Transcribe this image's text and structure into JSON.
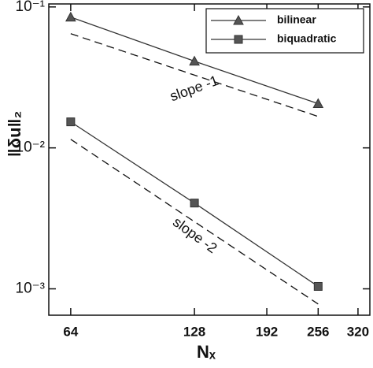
{
  "chart_data": {
    "type": "line",
    "xlabel": "Nₓ",
    "ylabel": "‖δu‖₂",
    "xscale": "log",
    "yscale": "log",
    "x": [
      64,
      128,
      256
    ],
    "series": [
      {
        "name": "bilinear",
        "color": "#333333",
        "marker": "triangle",
        "values": [
          0.0846,
          0.0412,
          0.0206
        ]
      },
      {
        "name": "biquadratic",
        "color": "#333333",
        "marker": "square",
        "values": [
          0.0153,
          0.00406,
          0.00104
        ]
      }
    ],
    "annotations": [
      {
        "text": "slope -1",
        "x": [
          64,
          256
        ],
        "y": [
          0.0646,
          0.0167
        ],
        "angle": -20
      },
      {
        "text": "slope -2",
        "x": [
          64,
          256
        ],
        "y": [
          0.0115,
          0.00078
        ],
        "angle": 36
      }
    ],
    "xlim": [
      56.6,
      342
    ],
    "ylim": [
      0.00065,
      0.105
    ],
    "xticks": [
      64,
      128,
      192,
      256,
      320
    ],
    "yticks": [
      {
        "value": 0.1,
        "label": "10⁻¹"
      },
      {
        "value": 0.01,
        "label": "10⁻²"
      },
      {
        "value": 0.001,
        "label": "10⁻³"
      }
    ],
    "legend": "upper right"
  }
}
